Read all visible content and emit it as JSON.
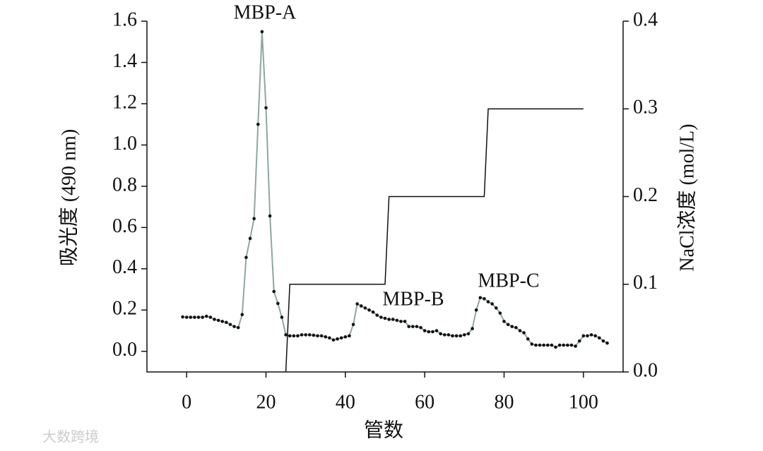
{
  "chart_data": {
    "type": "line",
    "x_label": "管数",
    "y_label": "吸光度 (490 nm)",
    "y2_label": "NaCl浓度 (mol/L)",
    "annotations": [
      "MBP-A",
      "MBP-B",
      "MBP-C"
    ],
    "watermark": "大数跨境",
    "xlim": [
      -10,
      110
    ],
    "xticks": [
      0,
      20,
      40,
      60,
      80,
      100
    ],
    "ylim": [
      -0.1,
      1.6
    ],
    "yticks": [
      {
        "value": 0,
        "label": "0.0"
      },
      0.2,
      0.4,
      0.6,
      0.8,
      {
        "value": 1,
        "label": "1.0"
      },
      1.2,
      1.4,
      1.6
    ],
    "y2lim": [
      0,
      0.4
    ],
    "y2ticks": [
      {
        "value": 0,
        "label": "0.0"
      },
      0.1,
      0.2,
      0.3,
      0.4
    ],
    "series": [
      {
        "color": "#8fa7a0",
        "marker_color": "#111",
        "x": [
          -1,
          0,
          1,
          2,
          3,
          4,
          5,
          6,
          7,
          8,
          9,
          10,
          11,
          12,
          13,
          14,
          15,
          16,
          17,
          18,
          19,
          20,
          21,
          22,
          23,
          24,
          25,
          26,
          27,
          28,
          29,
          30,
          31,
          32,
          33,
          34,
          35,
          36,
          37,
          38,
          39,
          40,
          41,
          42,
          43,
          44,
          45,
          46,
          47,
          48,
          49,
          50,
          51,
          52,
          53,
          54,
          55,
          56,
          57,
          58,
          59,
          60,
          61,
          62,
          63,
          64,
          65,
          66,
          67,
          68,
          69,
          70,
          71,
          72,
          73,
          74,
          75,
          76,
          77,
          78,
          79,
          80,
          81,
          82,
          83,
          84,
          85,
          86,
          87,
          88,
          89,
          90,
          91,
          92,
          93,
          94,
          95,
          96,
          97,
          98,
          99,
          100,
          101,
          102,
          103,
          104,
          105,
          106
        ],
        "values": [
          0.167,
          0.165,
          0.165,
          0.165,
          0.165,
          0.165,
          0.17,
          0.165,
          0.155,
          0.15,
          0.145,
          0.14,
          0.13,
          0.12,
          0.115,
          0.178,
          0.455,
          0.547,
          0.643,
          1.1,
          1.549,
          1.18,
          0.656,
          0.29,
          0.232,
          0.165,
          0.08,
          0.075,
          0.075,
          0.075,
          0.08,
          0.08,
          0.08,
          0.078,
          0.075,
          0.075,
          0.07,
          0.065,
          0.055,
          0.06,
          0.065,
          0.07,
          0.075,
          0.13,
          0.23,
          0.22,
          0.21,
          0.2,
          0.19,
          0.175,
          0.165,
          0.16,
          0.155,
          0.155,
          0.15,
          0.145,
          0.145,
          0.12,
          0.12,
          0.12,
          0.115,
          0.1,
          0.095,
          0.095,
          0.1,
          0.085,
          0.08,
          0.08,
          0.075,
          0.075,
          0.075,
          0.08,
          0.085,
          0.11,
          0.2,
          0.26,
          0.255,
          0.24,
          0.23,
          0.21,
          0.185,
          0.145,
          0.13,
          0.12,
          0.115,
          0.1,
          0.09,
          0.06,
          0.035,
          0.03,
          0.03,
          0.03,
          0.03,
          0.03,
          0.02,
          0.03,
          0.03,
          0.03,
          0.03,
          0.025,
          0.05,
          0.075,
          0.075,
          0.08,
          0.075,
          0.065,
          0.05,
          0.04
        ]
      },
      {
        "color": "#111",
        "axis": "y2",
        "x": [
          25,
          26,
          50,
          51,
          75,
          76,
          100
        ],
        "values": [
          0,
          0.1,
          0.1,
          0.2,
          0.2,
          0.3,
          0.3
        ]
      }
    ]
  }
}
